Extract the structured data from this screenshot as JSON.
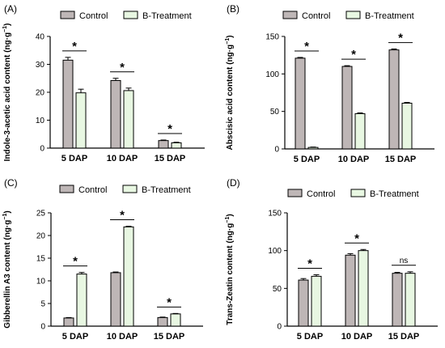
{
  "chart_data": [
    {
      "type": "bar",
      "panel_label": "(A)",
      "ylabel": "Indole-3-acetic acid content (ng·g",
      "ylabel_sup": "−1",
      "ylabel_close": ")",
      "ylim": [
        0,
        40
      ],
      "yticks": [
        "0",
        "10",
        "20",
        "30",
        "40"
      ],
      "categories": [
        "5 DAP",
        "10 DAP",
        "15 DAP"
      ],
      "series": [
        {
          "name": "Control",
          "values": [
            31.5,
            24.2,
            2.7
          ],
          "errors": [
            1.0,
            0.8,
            0.2
          ],
          "color": "#beb6b6"
        },
        {
          "name": "B-Treatment",
          "values": [
            19.8,
            20.6,
            1.9
          ],
          "errors": [
            1.3,
            0.9,
            0.2
          ],
          "color": "#e8f7e2"
        }
      ],
      "significance": [
        "*",
        "*",
        "*"
      ],
      "legend": "top"
    },
    {
      "type": "bar",
      "panel_label": "(B)",
      "ylabel": "Abscisic acid content (ng·g",
      "ylabel_sup": "−1",
      "ylabel_close": ")",
      "ylim": [
        0,
        150
      ],
      "yticks": [
        "0",
        "50",
        "100",
        "150"
      ],
      "categories": [
        "5 DAP",
        "10 DAP",
        "15 DAP"
      ],
      "series": [
        {
          "name": "Control",
          "values": [
            121,
            110,
            132
          ],
          "errors": [
            1.0,
            1.0,
            1.2
          ],
          "color": "#beb6b6"
        },
        {
          "name": "B-Treatment",
          "values": [
            2,
            47,
            61
          ],
          "errors": [
            0.5,
            1.0,
            1.0
          ],
          "color": "#e8f7e2"
        }
      ],
      "significance": [
        "*",
        "*",
        "*"
      ],
      "legend": "top"
    },
    {
      "type": "bar",
      "panel_label": "(C)",
      "ylabel": "Gibberellin A3 content (ng·g",
      "ylabel_sup": "−1",
      "ylabel_close": ")",
      "ylim": [
        0,
        25
      ],
      "yticks": [
        "0",
        "5",
        "10",
        "15",
        "20",
        "25"
      ],
      "categories": [
        "5 DAP",
        "10 DAP",
        "15 DAP"
      ],
      "series": [
        {
          "name": "Control",
          "values": [
            1.8,
            11.8,
            1.9
          ],
          "errors": [
            0.1,
            0.15,
            0.1
          ],
          "color": "#beb6b6"
        },
        {
          "name": "B-Treatment",
          "values": [
            11.5,
            21.9,
            2.7
          ],
          "errors": [
            0.35,
            0.15,
            0.1
          ],
          "color": "#e8f7e2"
        }
      ],
      "significance": [
        "*",
        "*",
        "*"
      ],
      "legend": "top"
    },
    {
      "type": "bar",
      "panel_label": "(D)",
      "ylabel": "Trans-Zeatin content (ng·g",
      "ylabel_sup": "−1",
      "ylabel_close": ")",
      "ylim": [
        0,
        150
      ],
      "yticks": [
        "0",
        "50",
        "100",
        "150"
      ],
      "categories": [
        "5 DAP",
        "10 DAP",
        "15 DAP"
      ],
      "series": [
        {
          "name": "Control",
          "values": [
            61,
            94,
            70
          ],
          "errors": [
            2.0,
            2.0,
            1.2
          ],
          "color": "#beb6b6"
        },
        {
          "name": "B-Treatment",
          "values": [
            66,
            100,
            70
          ],
          "errors": [
            2.0,
            1.5,
            2.0
          ],
          "color": "#e8f7e2"
        }
      ],
      "significance": [
        "*",
        "*",
        "ns"
      ],
      "legend": "top"
    }
  ]
}
